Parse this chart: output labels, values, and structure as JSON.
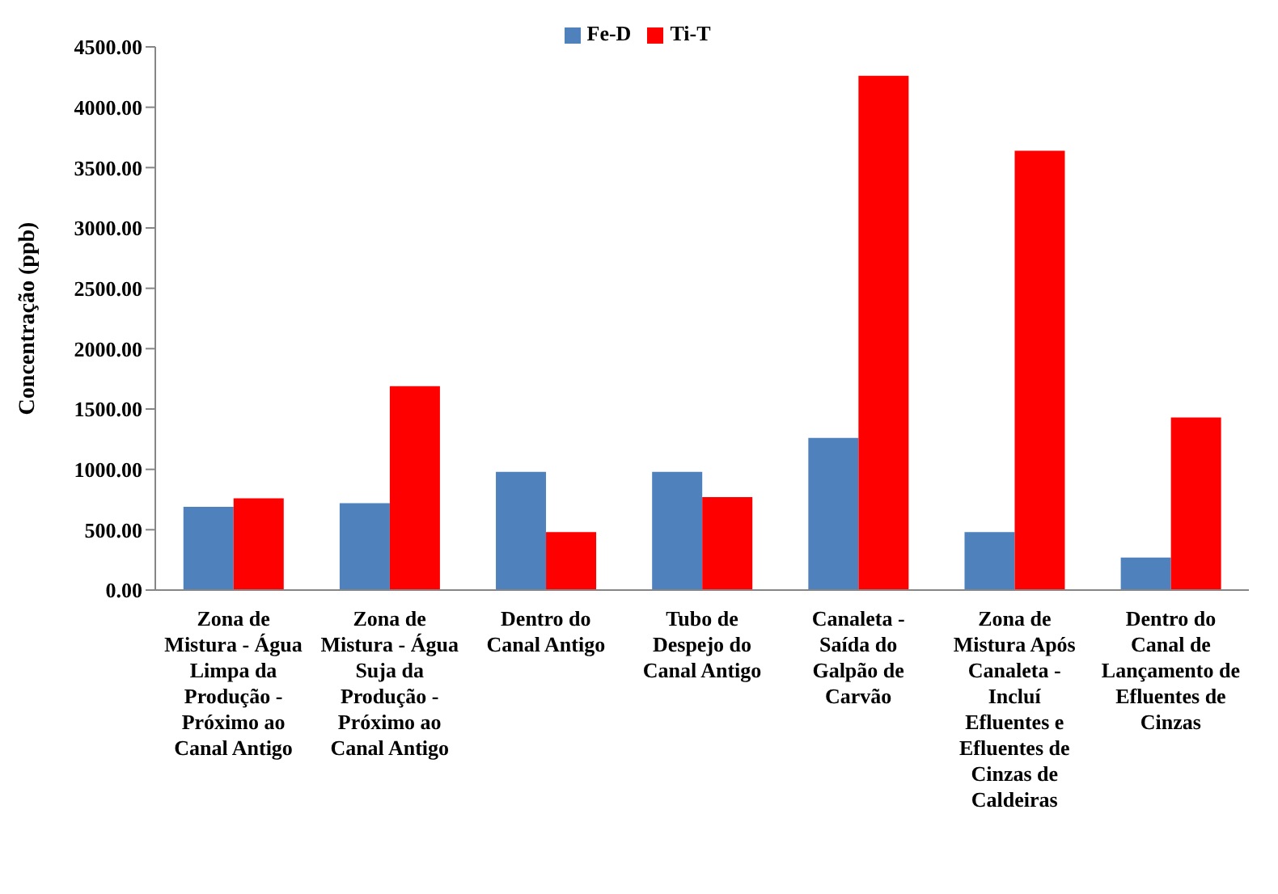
{
  "chart_data": {
    "type": "bar",
    "ylabel": "Concentração (ppb)",
    "categories": [
      "Zona de Mistura - Água Limpa da Produção - Próximo ao Canal Antigo",
      "Zona de Mistura - Água Suja da Produção - Próximo ao Canal Antigo",
      "Dentro do Canal Antigo",
      "Tubo de Despejo do Canal Antigo",
      "Canaleta - Saída do Galpão de Carvão",
      "Zona de Mistura Após Canaleta - Incluí Efluentes e Efluentes de Cinzas de Caldeiras",
      "Dentro do Canal de Lançamento de Efluentes de Cinzas"
    ],
    "series": [
      {
        "name": "Fe-D",
        "color": "#4f81bd",
        "values": [
          690,
          720,
          980,
          980,
          1260,
          480,
          270
        ]
      },
      {
        "name": "Ti-T",
        "color": "#ff0000",
        "values": [
          760,
          1690,
          480,
          770,
          4260,
          3640,
          1430
        ]
      }
    ],
    "ylim": [
      0,
      4500
    ],
    "yticks": [
      {
        "value": 0,
        "label": "0.00"
      },
      {
        "value": 500,
        "label": "500.00"
      },
      {
        "value": 1000,
        "label": "1000.00"
      },
      {
        "value": 1500,
        "label": "1500.00"
      },
      {
        "value": 2000,
        "label": "2000.00"
      },
      {
        "value": 2500,
        "label": "2500.00"
      },
      {
        "value": 3000,
        "label": "3000.00"
      },
      {
        "value": 3500,
        "label": "3500.00"
      },
      {
        "value": 4000,
        "label": "4000.00"
      },
      {
        "value": 4500,
        "label": "4500.00"
      }
    ],
    "grid": false,
    "legend": "top"
  }
}
